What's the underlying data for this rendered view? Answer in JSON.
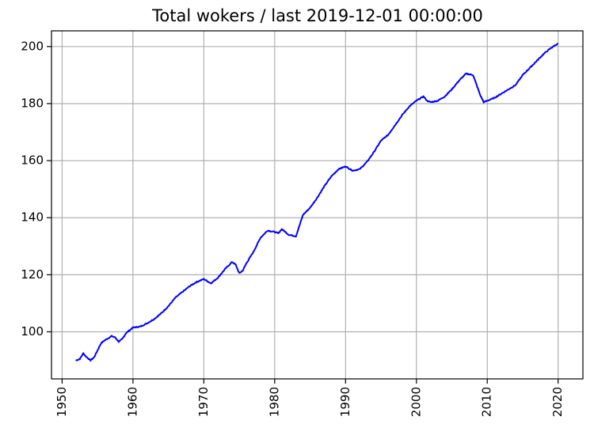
{
  "chart_data": {
    "type": "line",
    "title": "Total wokers / last 2019-12-01 00:00:00",
    "xlabel": "",
    "ylabel": "",
    "xlim": [
      1948.5,
      2023.5
    ],
    "ylim": [
      83.5,
      205.5
    ],
    "x_ticks": [
      1950,
      1960,
      1970,
      1980,
      1990,
      2000,
      2010,
      2020
    ],
    "y_ticks": [
      100,
      120,
      140,
      160,
      180,
      200
    ],
    "grid": true,
    "legend": "none",
    "series": [
      {
        "color": "#0000ff",
        "x": [
          1952.0,
          1952.5,
          1953.0,
          1953.3,
          1954.0,
          1954.5,
          1955.0,
          1955.5,
          1956.0,
          1957.0,
          1957.5,
          1958.0,
          1958.5,
          1959.0,
          1960.0,
          1961.0,
          1962.0,
          1963.0,
          1964.0,
          1965.0,
          1966.0,
          1967.0,
          1968.0,
          1969.0,
          1970.0,
          1971.0,
          1972.0,
          1973.0,
          1974.0,
          1974.5,
          1975.0,
          1975.5,
          1976.0,
          1977.0,
          1978.0,
          1979.0,
          1980.0,
          1980.5,
          1981.0,
          1981.5,
          1982.0,
          1983.0,
          1984.0,
          1985.0,
          1986.0,
          1987.0,
          1988.0,
          1989.0,
          1990.0,
          1991.0,
          1992.0,
          1993.0,
          1994.0,
          1995.0,
          1996.0,
          1997.0,
          1998.0,
          1999.0,
          2000.0,
          2001.0,
          2001.5,
          2002.0,
          2003.0,
          2004.0,
          2005.0,
          2006.0,
          2007.0,
          2008.0,
          2009.0,
          2009.5,
          2010.0,
          2011.0,
          2012.0,
          2013.0,
          2014.0,
          2015.0,
          2016.0,
          2017.0,
          2018.0,
          2019.0,
          2019.92
        ],
        "values": [
          90.0,
          90.5,
          92.5,
          91.5,
          90.0,
          91.0,
          93.5,
          96.0,
          97.0,
          98.5,
          98.0,
          96.5,
          97.5,
          99.5,
          101.5,
          101.8,
          103.0,
          104.5,
          106.5,
          109.0,
          112.0,
          114.0,
          116.0,
          117.5,
          118.5,
          117.0,
          119.0,
          122.0,
          124.5,
          123.5,
          120.5,
          121.5,
          124.0,
          128.0,
          133.0,
          135.5,
          135.0,
          134.5,
          136.0,
          135.0,
          134.0,
          133.5,
          141.0,
          143.5,
          147.0,
          151.0,
          154.5,
          157.0,
          158.0,
          156.5,
          157.0,
          159.5,
          163.0,
          167.0,
          169.0,
          172.5,
          176.0,
          179.0,
          181.0,
          182.5,
          181.0,
          180.5,
          181.0,
          182.5,
          185.0,
          188.0,
          190.5,
          190.0,
          183.0,
          180.5,
          181.0,
          182.0,
          183.5,
          185.0,
          186.5,
          190.0,
          192.5,
          195.0,
          197.5,
          199.5,
          201.0
        ]
      }
    ]
  }
}
